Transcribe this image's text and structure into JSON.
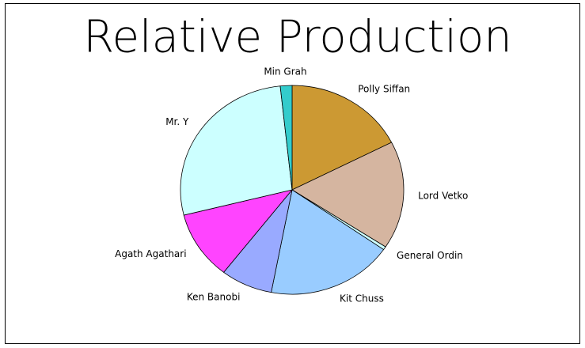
{
  "chart_data": {
    "type": "pie",
    "title": "Relative Production",
    "categories": [
      "Polly Siffan",
      "Lord Vetko",
      "General Ordin",
      "Kit Chuss",
      "Ken Banobi",
      "Agath Agathari",
      "Mr. Y",
      "Min Grah"
    ],
    "values": [
      17.5,
      16.7,
      0.5,
      18.3,
      7.5,
      10.6,
      27.2,
      1.7
    ],
    "colors": [
      "#cc9933",
      "#d5b5a0",
      "#ccffff",
      "#99ccff",
      "#99aaff",
      "#ff44ff",
      "#ccffff",
      "#33cccc"
    ]
  }
}
